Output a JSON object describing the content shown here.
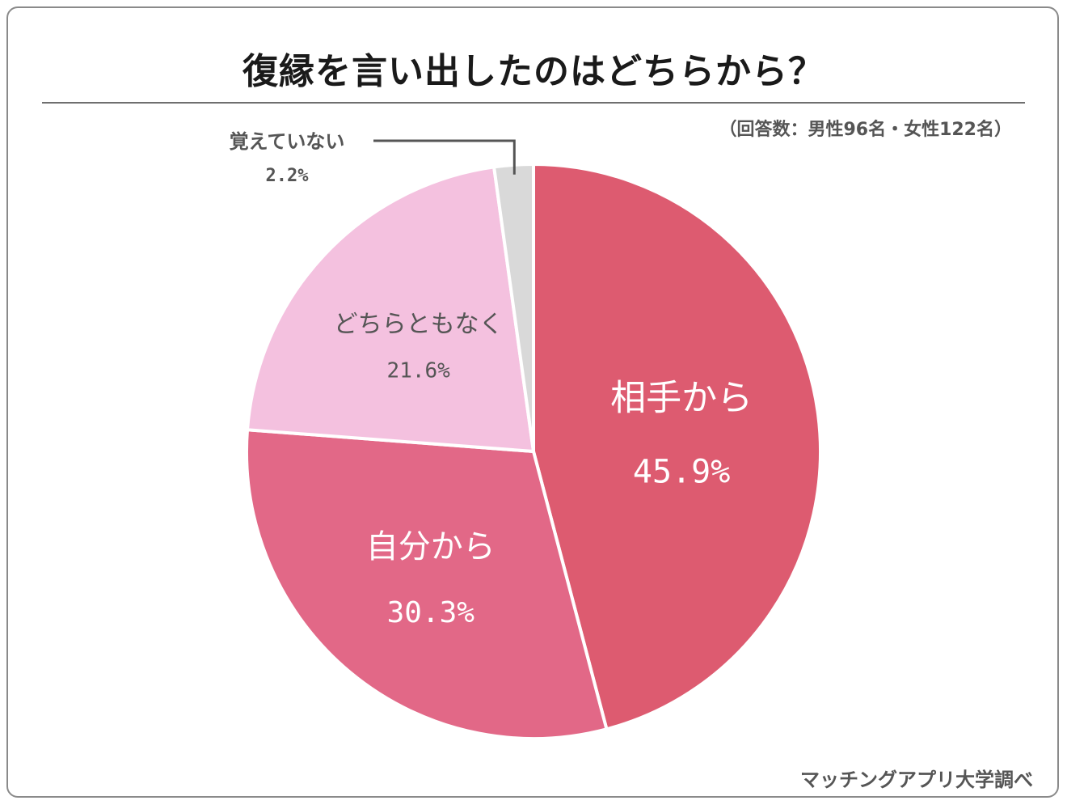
{
  "chart_data": {
    "type": "pie",
    "title": "復縁を言い出したのはどちらから？",
    "note": "（回答数：男性96名・女性122名）",
    "source": "マッチングアプリ大学調べ",
    "slices": [
      {
        "label": "相手から",
        "value": 45.9,
        "value_text": "45.9%",
        "color": "#dd5b70"
      },
      {
        "label": "自分から",
        "value": 30.3,
        "value_text": "30.3%",
        "color": "#e26887"
      },
      {
        "label": "どちらともなく",
        "value": 21.6,
        "value_text": "21.6%",
        "color": "#f4c1df"
      },
      {
        "label": "覚えていない",
        "value": 2.2,
        "value_text": "2.2%",
        "color": "#d9d9d9"
      }
    ],
    "start": "12 o'clock",
    "direction": "clockwise"
  }
}
